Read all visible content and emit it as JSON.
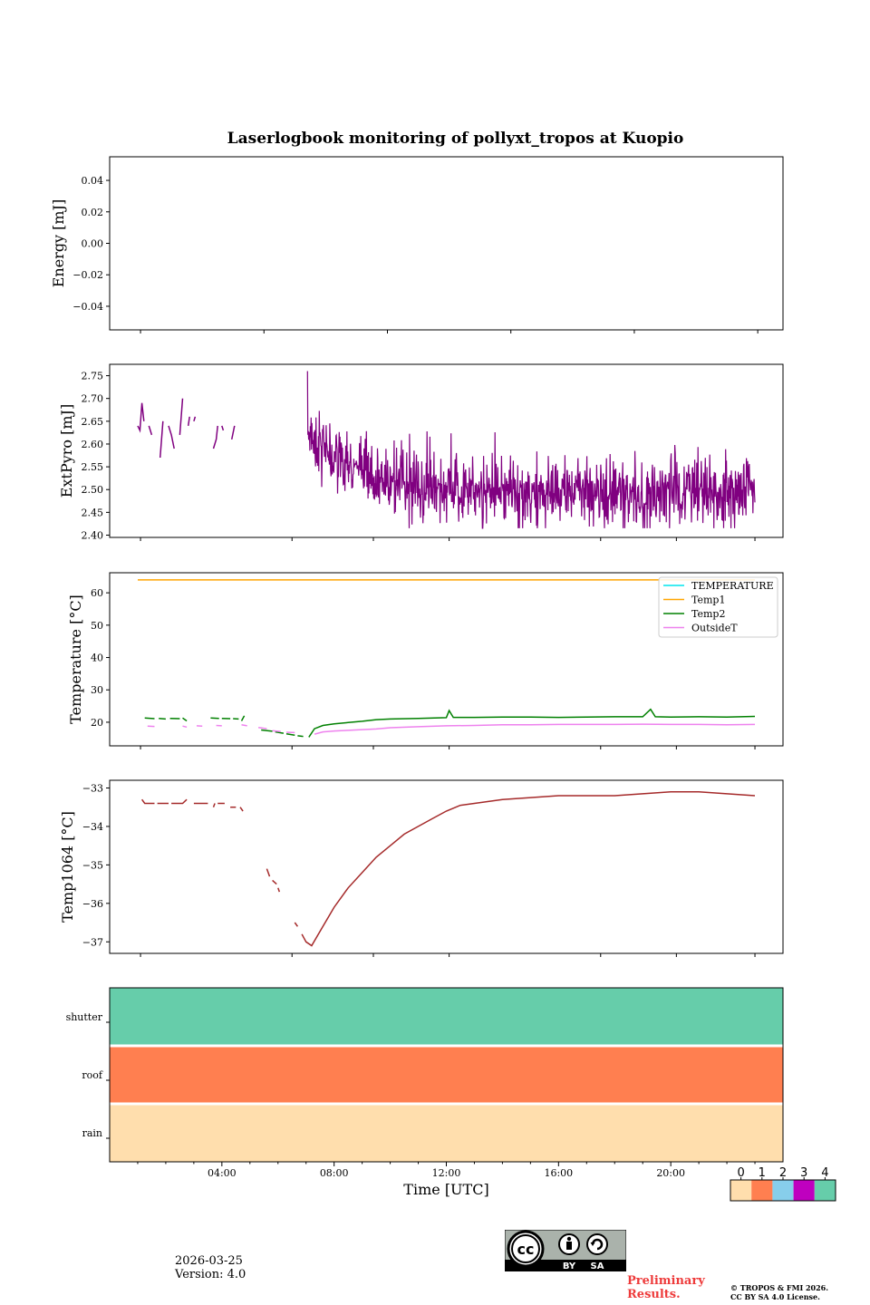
{
  "chart_data": [
    {
      "id": "energy",
      "type": "line",
      "title": "Laserlogbook monitoring of pollyxt_tropos at Kuopio",
      "ylabel": "Energy [mJ]",
      "ylim": [
        -0.055,
        0.055
      ],
      "yticks": [
        0.04,
        0.02,
        0.0,
        -0.02,
        -0.04
      ],
      "ytick_labels": [
        "0.04",
        "0.02",
        "0.00",
        "−0.02",
        "−0.04"
      ],
      "series": []
    },
    {
      "id": "extpyro",
      "type": "line",
      "ylabel": "ExtPyro [mJ]",
      "ylim": [
        2.395,
        2.775
      ],
      "yticks": [
        2.75,
        2.7,
        2.65,
        2.6,
        2.55,
        2.5,
        2.45,
        2.4
      ],
      "ytick_labels": [
        "2.75",
        "2.70",
        "2.65",
        "2.60",
        "2.55",
        "2.50",
        "2.45",
        "2.40"
      ],
      "series": [
        {
          "name": "ExtPyro",
          "color": "#800080",
          "segments": [
            [
              [
                1.0,
                2.64
              ],
              [
                1.08,
                2.63
              ],
              [
                1.15,
                2.69
              ],
              [
                1.22,
                2.65
              ]
            ],
            [
              [
                1.4,
                2.64
              ],
              [
                1.5,
                2.62
              ]
            ],
            [
              [
                1.8,
                2.57
              ],
              [
                1.9,
                2.65
              ]
            ],
            [
              [
                2.1,
                2.64
              ],
              [
                2.2,
                2.62
              ],
              [
                2.3,
                2.59
              ]
            ],
            [
              [
                2.5,
                2.62
              ],
              [
                2.6,
                2.7
              ]
            ],
            [
              [
                2.8,
                2.64
              ],
              [
                2.85,
                2.66
              ]
            ],
            [
              [
                3.0,
                2.65
              ],
              [
                3.05,
                2.66
              ]
            ],
            [
              [
                3.7,
                2.59
              ],
              [
                3.8,
                2.61
              ],
              [
                3.85,
                2.64
              ]
            ],
            [
              [
                4.0,
                2.64
              ],
              [
                4.05,
                2.63
              ]
            ],
            [
              [
                4.35,
                2.61
              ],
              [
                4.45,
                2.64
              ]
            ]
          ],
          "noisy": {
            "start": 7.05,
            "end": 23.0,
            "points": 1100,
            "spike": 2.76,
            "early_level": 2.63,
            "late_level": 2.495,
            "decay_hours": 1.6,
            "noise": 0.045
          }
        }
      ]
    },
    {
      "id": "temperature",
      "type": "line",
      "ylabel": "Temperature [°C]",
      "ylim": [
        12.7,
        66.2
      ],
      "yticks": [
        60,
        50,
        40,
        30,
        20
      ],
      "ytick_labels": [
        "60",
        "50",
        "40",
        "30",
        "20"
      ],
      "legend": {
        "placement": "top-right",
        "entries": [
          "TEMPERATURE",
          "Temp1",
          "Temp2",
          "OutsideT"
        ]
      },
      "series": [
        {
          "name": "TEMPERATURE",
          "color": "#00e5ee",
          "segments": []
        },
        {
          "name": "Temp1",
          "color": "#ffa500",
          "segments": [
            [
              [
                1.0,
                64.0
              ],
              [
                23.0,
                64.0
              ]
            ]
          ]
        },
        {
          "name": "Temp2",
          "color": "#008000",
          "segments": [
            [
              [
                1.25,
                21.3
              ],
              [
                1.6,
                21.1
              ]
            ],
            [
              [
                1.75,
                21.2
              ],
              [
                2.0,
                21.0
              ]
            ],
            [
              [
                2.15,
                21.2
              ],
              [
                2.5,
                21.1
              ]
            ],
            [
              [
                2.6,
                21.3
              ],
              [
                2.75,
                20.4
              ]
            ],
            [
              [
                3.6,
                21.3
              ],
              [
                3.9,
                21.2
              ]
            ],
            [
              [
                4.0,
                21.2
              ],
              [
                4.3,
                21.1
              ]
            ],
            [
              [
                4.4,
                21.1
              ],
              [
                4.6,
                21.0
              ]
            ],
            [
              [
                4.7,
                20.4
              ],
              [
                4.8,
                22.0
              ]
            ],
            [
              [
                5.4,
                17.6
              ],
              [
                5.8,
                17.2
              ]
            ],
            [
              [
                5.9,
                17.0
              ],
              [
                6.2,
                16.6
              ]
            ],
            [
              [
                6.3,
                16.4
              ],
              [
                6.6,
                16.0
              ]
            ],
            [
              [
                6.7,
                15.8
              ],
              [
                6.9,
                15.6
              ]
            ],
            [
              [
                7.1,
                15.4
              ],
              [
                7.3,
                18.0
              ],
              [
                7.6,
                19.0
              ],
              [
                8.0,
                19.5
              ],
              [
                8.5,
                19.9
              ],
              [
                9.0,
                20.3
              ],
              [
                9.5,
                20.8
              ],
              [
                10.0,
                21.0
              ],
              [
                11.0,
                21.2
              ],
              [
                12.0,
                21.4
              ],
              [
                12.1,
                23.6
              ],
              [
                12.25,
                21.5
              ],
              [
                13.0,
                21.5
              ],
              [
                14.0,
                21.6
              ],
              [
                15.0,
                21.6
              ],
              [
                16.0,
                21.5
              ],
              [
                17.0,
                21.6
              ],
              [
                18.0,
                21.7
              ],
              [
                19.0,
                21.7
              ],
              [
                19.28,
                24.0
              ],
              [
                19.45,
                21.7
              ],
              [
                20.0,
                21.6
              ],
              [
                21.0,
                21.7
              ],
              [
                22.0,
                21.6
              ],
              [
                23.0,
                21.8
              ]
            ]
          ]
        },
        {
          "name": "OutsideT",
          "color": "#ee82ee",
          "segments": [
            [
              [
                1.35,
                18.8
              ],
              [
                1.6,
                18.7
              ]
            ],
            [
              [
                2.6,
                18.8
              ],
              [
                2.75,
                18.5
              ]
            ],
            [
              [
                3.1,
                18.9
              ],
              [
                3.3,
                18.8
              ]
            ],
            [
              [
                3.8,
                19.0
              ],
              [
                4.0,
                18.9
              ]
            ],
            [
              [
                4.7,
                19.2
              ],
              [
                4.9,
                18.9
              ]
            ],
            [
              [
                5.3,
                18.4
              ],
              [
                5.6,
                18.0
              ]
            ],
            [
              [
                5.8,
                17.4
              ],
              [
                6.1,
                17.1
              ]
            ],
            [
              [
                6.3,
                16.9
              ],
              [
                6.6,
                16.8
              ]
            ],
            [
              [
                7.3,
                16.3
              ],
              [
                7.6,
                17.0
              ],
              [
                8.0,
                17.3
              ],
              [
                8.5,
                17.5
              ],
              [
                9.0,
                17.7
              ],
              [
                9.5,
                17.9
              ],
              [
                10.0,
                18.3
              ],
              [
                11.0,
                18.6
              ],
              [
                12.0,
                18.9
              ],
              [
                13.0,
                19.0
              ],
              [
                14.0,
                19.2
              ],
              [
                15.0,
                19.2
              ],
              [
                16.0,
                19.3
              ],
              [
                17.0,
                19.3
              ],
              [
                18.0,
                19.3
              ],
              [
                19.0,
                19.4
              ],
              [
                20.0,
                19.3
              ],
              [
                21.0,
                19.3
              ],
              [
                22.0,
                19.2
              ],
              [
                23.0,
                19.3
              ]
            ]
          ]
        }
      ]
    },
    {
      "id": "temp1064",
      "type": "line",
      "ylabel": "Temp1064 [°C]",
      "ylim": [
        -37.3,
        -32.8
      ],
      "yticks": [
        -33,
        -34,
        -35,
        -36,
        -37
      ],
      "ytick_labels": [
        "−33",
        "−34",
        "−35",
        "−36",
        "−37"
      ],
      "series": [
        {
          "name": "Temp1064",
          "color": "#a52a2a",
          "segments": [
            [
              [
                1.15,
                -33.3
              ],
              [
                1.25,
                -33.4
              ],
              [
                1.6,
                -33.4
              ]
            ],
            [
              [
                1.7,
                -33.4
              ],
              [
                2.1,
                -33.4
              ]
            ],
            [
              [
                2.2,
                -33.4
              ],
              [
                2.6,
                -33.4
              ],
              [
                2.75,
                -33.3
              ]
            ],
            [
              [
                3.0,
                -33.4
              ],
              [
                3.5,
                -33.4
              ]
            ],
            [
              [
                3.7,
                -33.5
              ],
              [
                3.75,
                -33.4
              ]
            ],
            [
              [
                3.85,
                -33.4
              ],
              [
                4.1,
                -33.4
              ]
            ],
            [
              [
                4.3,
                -33.5
              ],
              [
                4.5,
                -33.5
              ]
            ],
            [
              [
                4.65,
                -33.5
              ],
              [
                4.75,
                -33.6
              ]
            ],
            [
              [
                5.6,
                -35.1
              ],
              [
                5.7,
                -35.3
              ]
            ],
            [
              [
                5.8,
                -35.4
              ],
              [
                5.95,
                -35.5
              ]
            ],
            [
              [
                6.0,
                -35.6
              ],
              [
                6.05,
                -35.7
              ]
            ],
            [
              [
                6.6,
                -36.5
              ],
              [
                6.7,
                -36.6
              ]
            ],
            [
              [
                6.85,
                -36.8
              ],
              [
                7.0,
                -37.0
              ],
              [
                7.2,
                -37.1
              ],
              [
                7.6,
                -36.6
              ],
              [
                8.0,
                -36.1
              ],
              [
                8.5,
                -35.6
              ],
              [
                9.0,
                -35.2
              ],
              [
                9.5,
                -34.8
              ],
              [
                10.0,
                -34.5
              ],
              [
                10.5,
                -34.2
              ],
              [
                11.0,
                -34.0
              ],
              [
                11.5,
                -33.8
              ],
              [
                12.0,
                -33.6
              ],
              [
                12.5,
                -33.45
              ],
              [
                13.0,
                -33.4
              ],
              [
                14.0,
                -33.3
              ],
              [
                15.0,
                -33.25
              ],
              [
                16.0,
                -33.2
              ],
              [
                17.0,
                -33.2
              ],
              [
                18.0,
                -33.2
              ],
              [
                19.0,
                -33.15
              ],
              [
                20.0,
                -33.1
              ],
              [
                21.0,
                -33.1
              ],
              [
                22.0,
                -33.15
              ],
              [
                23.0,
                -33.2
              ]
            ]
          ]
        }
      ]
    },
    {
      "id": "status",
      "type": "heatmap",
      "xlabel": "Time [UTC]",
      "rows": [
        {
          "label": "shutter",
          "value": 4
        },
        {
          "label": "roof",
          "value": 1
        },
        {
          "label": "rain",
          "value": 0
        }
      ],
      "xticks": [
        4,
        8,
        12,
        16,
        20
      ],
      "xtick_labels": [
        "04:00",
        "08:00",
        "12:00",
        "16:00",
        "20:00"
      ],
      "colorbar": {
        "labels": [
          "0",
          "1",
          "2",
          "3",
          "4"
        ],
        "colors": [
          "#ffdead",
          "#ff7f50",
          "#87ceeb",
          "#bf00bf",
          "#66cdaa"
        ]
      }
    }
  ],
  "footer": {
    "date": "2026-03-25",
    "version": "Version: 4.0",
    "preliminary_line1": "Preliminary",
    "preliminary_line2": "Results.",
    "copyright_line1": "© TROPOS & FMI 2026.",
    "copyright_line2": "CC BY SA 4.0 License.",
    "cc_label_by": "BY",
    "cc_label_sa": "SA"
  }
}
